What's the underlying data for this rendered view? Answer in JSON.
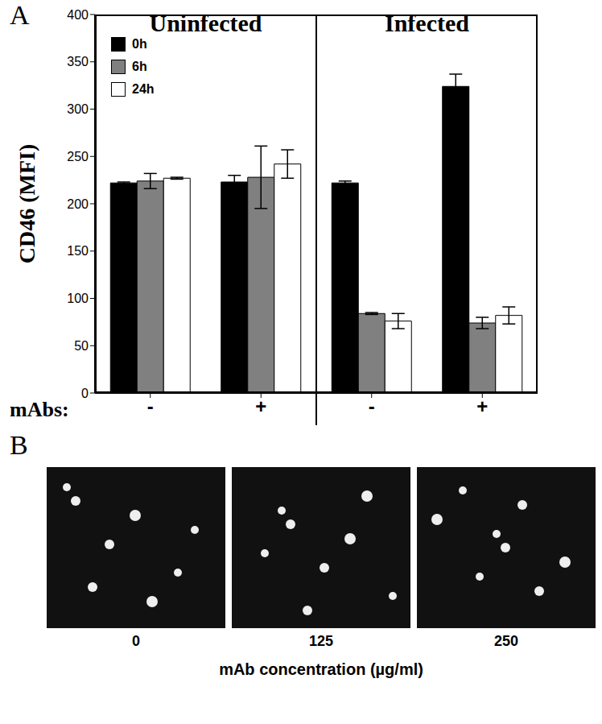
{
  "chart_data": {
    "type": "bar",
    "panel_label": "A",
    "ylabel": "CD46 (MFI)",
    "group_labels": [
      "Uninfected",
      "Infected"
    ],
    "xlabel": "mAbs:",
    "categories": [
      "-",
      "+",
      "-",
      "+"
    ],
    "series": [
      {
        "name": "0h",
        "color": "#000000",
        "values": [
          222,
          223,
          222,
          324
        ],
        "errors": [
          1,
          7,
          2,
          13
        ]
      },
      {
        "name": "6h",
        "color": "#808080",
        "values": [
          224,
          228,
          84,
          74
        ],
        "errors": [
          8,
          33,
          1,
          6
        ]
      },
      {
        "name": "24h",
        "color": "#ffffff",
        "values": [
          227,
          242,
          76,
          82
        ],
        "errors": [
          1,
          15,
          8,
          9
        ]
      }
    ],
    "ylim": [
      0,
      400
    ],
    "yticks": [
      0,
      50,
      100,
      150,
      200,
      250,
      300,
      350,
      400
    ],
    "legend": "upper left"
  },
  "panel_b": {
    "label": "B",
    "images": [
      "0",
      "125",
      "250"
    ],
    "xlabel": "mAb concentration (µg/ml)"
  }
}
